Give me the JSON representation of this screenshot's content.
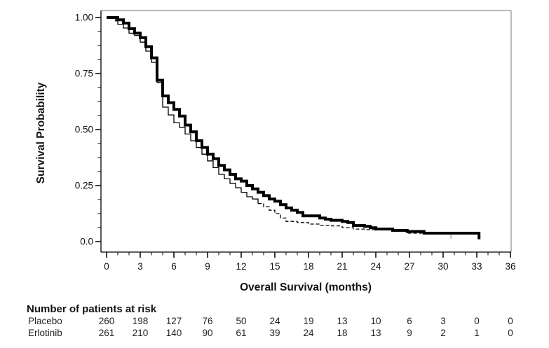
{
  "chart_data": {
    "type": "line",
    "subtype": "kaplan-meier-step",
    "title": "",
    "xlabel": "Overall Survival (months)",
    "ylabel": "Survival Probability",
    "xlim": [
      0,
      36
    ],
    "ylim": [
      0.0,
      1.0
    ],
    "grid": false,
    "legend_position": "none",
    "xticks": [
      0,
      3,
      6,
      9,
      12,
      15,
      18,
      21,
      24,
      27,
      30,
      33,
      36
    ],
    "x_minor_step": 1,
    "yticks": [
      {
        "value": 1.0,
        "label": "1.00"
      },
      {
        "value": 0.75,
        "label": "0.75"
      },
      {
        "value": 0.5,
        "label": "0.50"
      },
      {
        "value": 0.25,
        "label": "0.25"
      },
      {
        "value": 0.0,
        "label": "0.0"
      }
    ],
    "y_minor_step": 0.0625,
    "series": [
      {
        "name": "Placebo",
        "line_style": "thin-dashed",
        "stroke_width": 1.3,
        "color": "#000000",
        "dash_from_month": 13.5,
        "end_censor_tick": {
          "month": 30.7,
          "from": 0.033,
          "to": 0.012,
          "color": "#b0b0b0"
        },
        "points": [
          [
            0,
            1.0
          ],
          [
            0.4,
            1.0
          ],
          [
            0.8,
            0.985
          ],
          [
            1.0,
            0.97
          ],
          [
            1.5,
            0.953
          ],
          [
            2.0,
            0.93
          ],
          [
            2.5,
            0.92
          ],
          [
            3.0,
            0.89
          ],
          [
            3.5,
            0.85
          ],
          [
            4.0,
            0.8
          ],
          [
            4.5,
            0.71
          ],
          [
            5.0,
            0.6
          ],
          [
            5.5,
            0.565
          ],
          [
            6.0,
            0.53
          ],
          [
            6.5,
            0.51
          ],
          [
            7.0,
            0.48
          ],
          [
            7.5,
            0.45
          ],
          [
            8.0,
            0.42
          ],
          [
            8.5,
            0.39
          ],
          [
            9.0,
            0.36
          ],
          [
            9.5,
            0.33
          ],
          [
            10.0,
            0.3
          ],
          [
            10.5,
            0.28
          ],
          [
            11.0,
            0.26
          ],
          [
            11.5,
            0.24
          ],
          [
            12.0,
            0.22
          ],
          [
            12.5,
            0.2
          ],
          [
            13.0,
            0.19
          ],
          [
            13.5,
            0.17
          ],
          [
            14.0,
            0.155
          ],
          [
            14.5,
            0.14
          ],
          [
            15.0,
            0.125
          ],
          [
            15.5,
            0.105
          ],
          [
            16.0,
            0.09
          ],
          [
            17.0,
            0.085
          ],
          [
            18.0,
            0.078
          ],
          [
            19.0,
            0.072
          ],
          [
            20.0,
            0.07
          ],
          [
            21.0,
            0.0625
          ],
          [
            22.0,
            0.056
          ],
          [
            23.0,
            0.053
          ],
          [
            25.6,
            0.05
          ],
          [
            26.8,
            0.0375
          ],
          [
            30.7,
            0.033
          ]
        ]
      },
      {
        "name": "Erlotinib",
        "line_style": "thick-solid",
        "stroke_width": 4,
        "color": "#000000",
        "points": [
          [
            0,
            1.0
          ],
          [
            0.9,
            1.0
          ],
          [
            1.0,
            0.99
          ],
          [
            1.5,
            0.975
          ],
          [
            2.0,
            0.95
          ],
          [
            2.5,
            0.93
          ],
          [
            3.0,
            0.91
          ],
          [
            3.5,
            0.87
          ],
          [
            4.0,
            0.82
          ],
          [
            4.5,
            0.72
          ],
          [
            5.0,
            0.65
          ],
          [
            5.5,
            0.62
          ],
          [
            6.0,
            0.59
          ],
          [
            6.5,
            0.56
          ],
          [
            7.0,
            0.52
          ],
          [
            7.5,
            0.49
          ],
          [
            8.0,
            0.45
          ],
          [
            8.5,
            0.42
          ],
          [
            9.0,
            0.39
          ],
          [
            9.5,
            0.37
          ],
          [
            10.0,
            0.34
          ],
          [
            10.5,
            0.32
          ],
          [
            11.0,
            0.3
          ],
          [
            11.5,
            0.28
          ],
          [
            12.0,
            0.27
          ],
          [
            12.5,
            0.25
          ],
          [
            13.0,
            0.235
          ],
          [
            13.5,
            0.22
          ],
          [
            14.0,
            0.205
          ],
          [
            14.5,
            0.19
          ],
          [
            15.0,
            0.18
          ],
          [
            15.5,
            0.165
          ],
          [
            16.0,
            0.15
          ],
          [
            16.5,
            0.14
          ],
          [
            17.0,
            0.13
          ],
          [
            17.5,
            0.115
          ],
          [
            19.0,
            0.105
          ],
          [
            19.5,
            0.1
          ],
          [
            20.0,
            0.095
          ],
          [
            21.0,
            0.09
          ],
          [
            21.5,
            0.085
          ],
          [
            22.0,
            0.072
          ],
          [
            23.0,
            0.068
          ],
          [
            23.5,
            0.062
          ],
          [
            24.0,
            0.056
          ],
          [
            25.5,
            0.05
          ],
          [
            26.8,
            0.045
          ],
          [
            28.3,
            0.0375
          ],
          [
            33.2,
            0.0375
          ],
          [
            33.2,
            0.01
          ]
        ]
      }
    ]
  },
  "at_risk": {
    "title": "Number of patients at risk",
    "timepoints": [
      0,
      3,
      6,
      9,
      12,
      15,
      18,
      21,
      24,
      27,
      30,
      33,
      36
    ],
    "rows": [
      {
        "label": "Placebo",
        "counts": [
          260,
          198,
          127,
          76,
          50,
          24,
          19,
          13,
          10,
          6,
          3,
          0,
          0
        ]
      },
      {
        "label": "Erlotinib",
        "counts": [
          261,
          210,
          140,
          90,
          61,
          39,
          24,
          18,
          13,
          9,
          2,
          1,
          0
        ]
      }
    ]
  },
  "colors": {
    "axis": "#000000",
    "frame": "#8c8c8c",
    "text": "#111111",
    "placebo_censor_tick": "#b0b0b0",
    "background": "#ffffff"
  }
}
